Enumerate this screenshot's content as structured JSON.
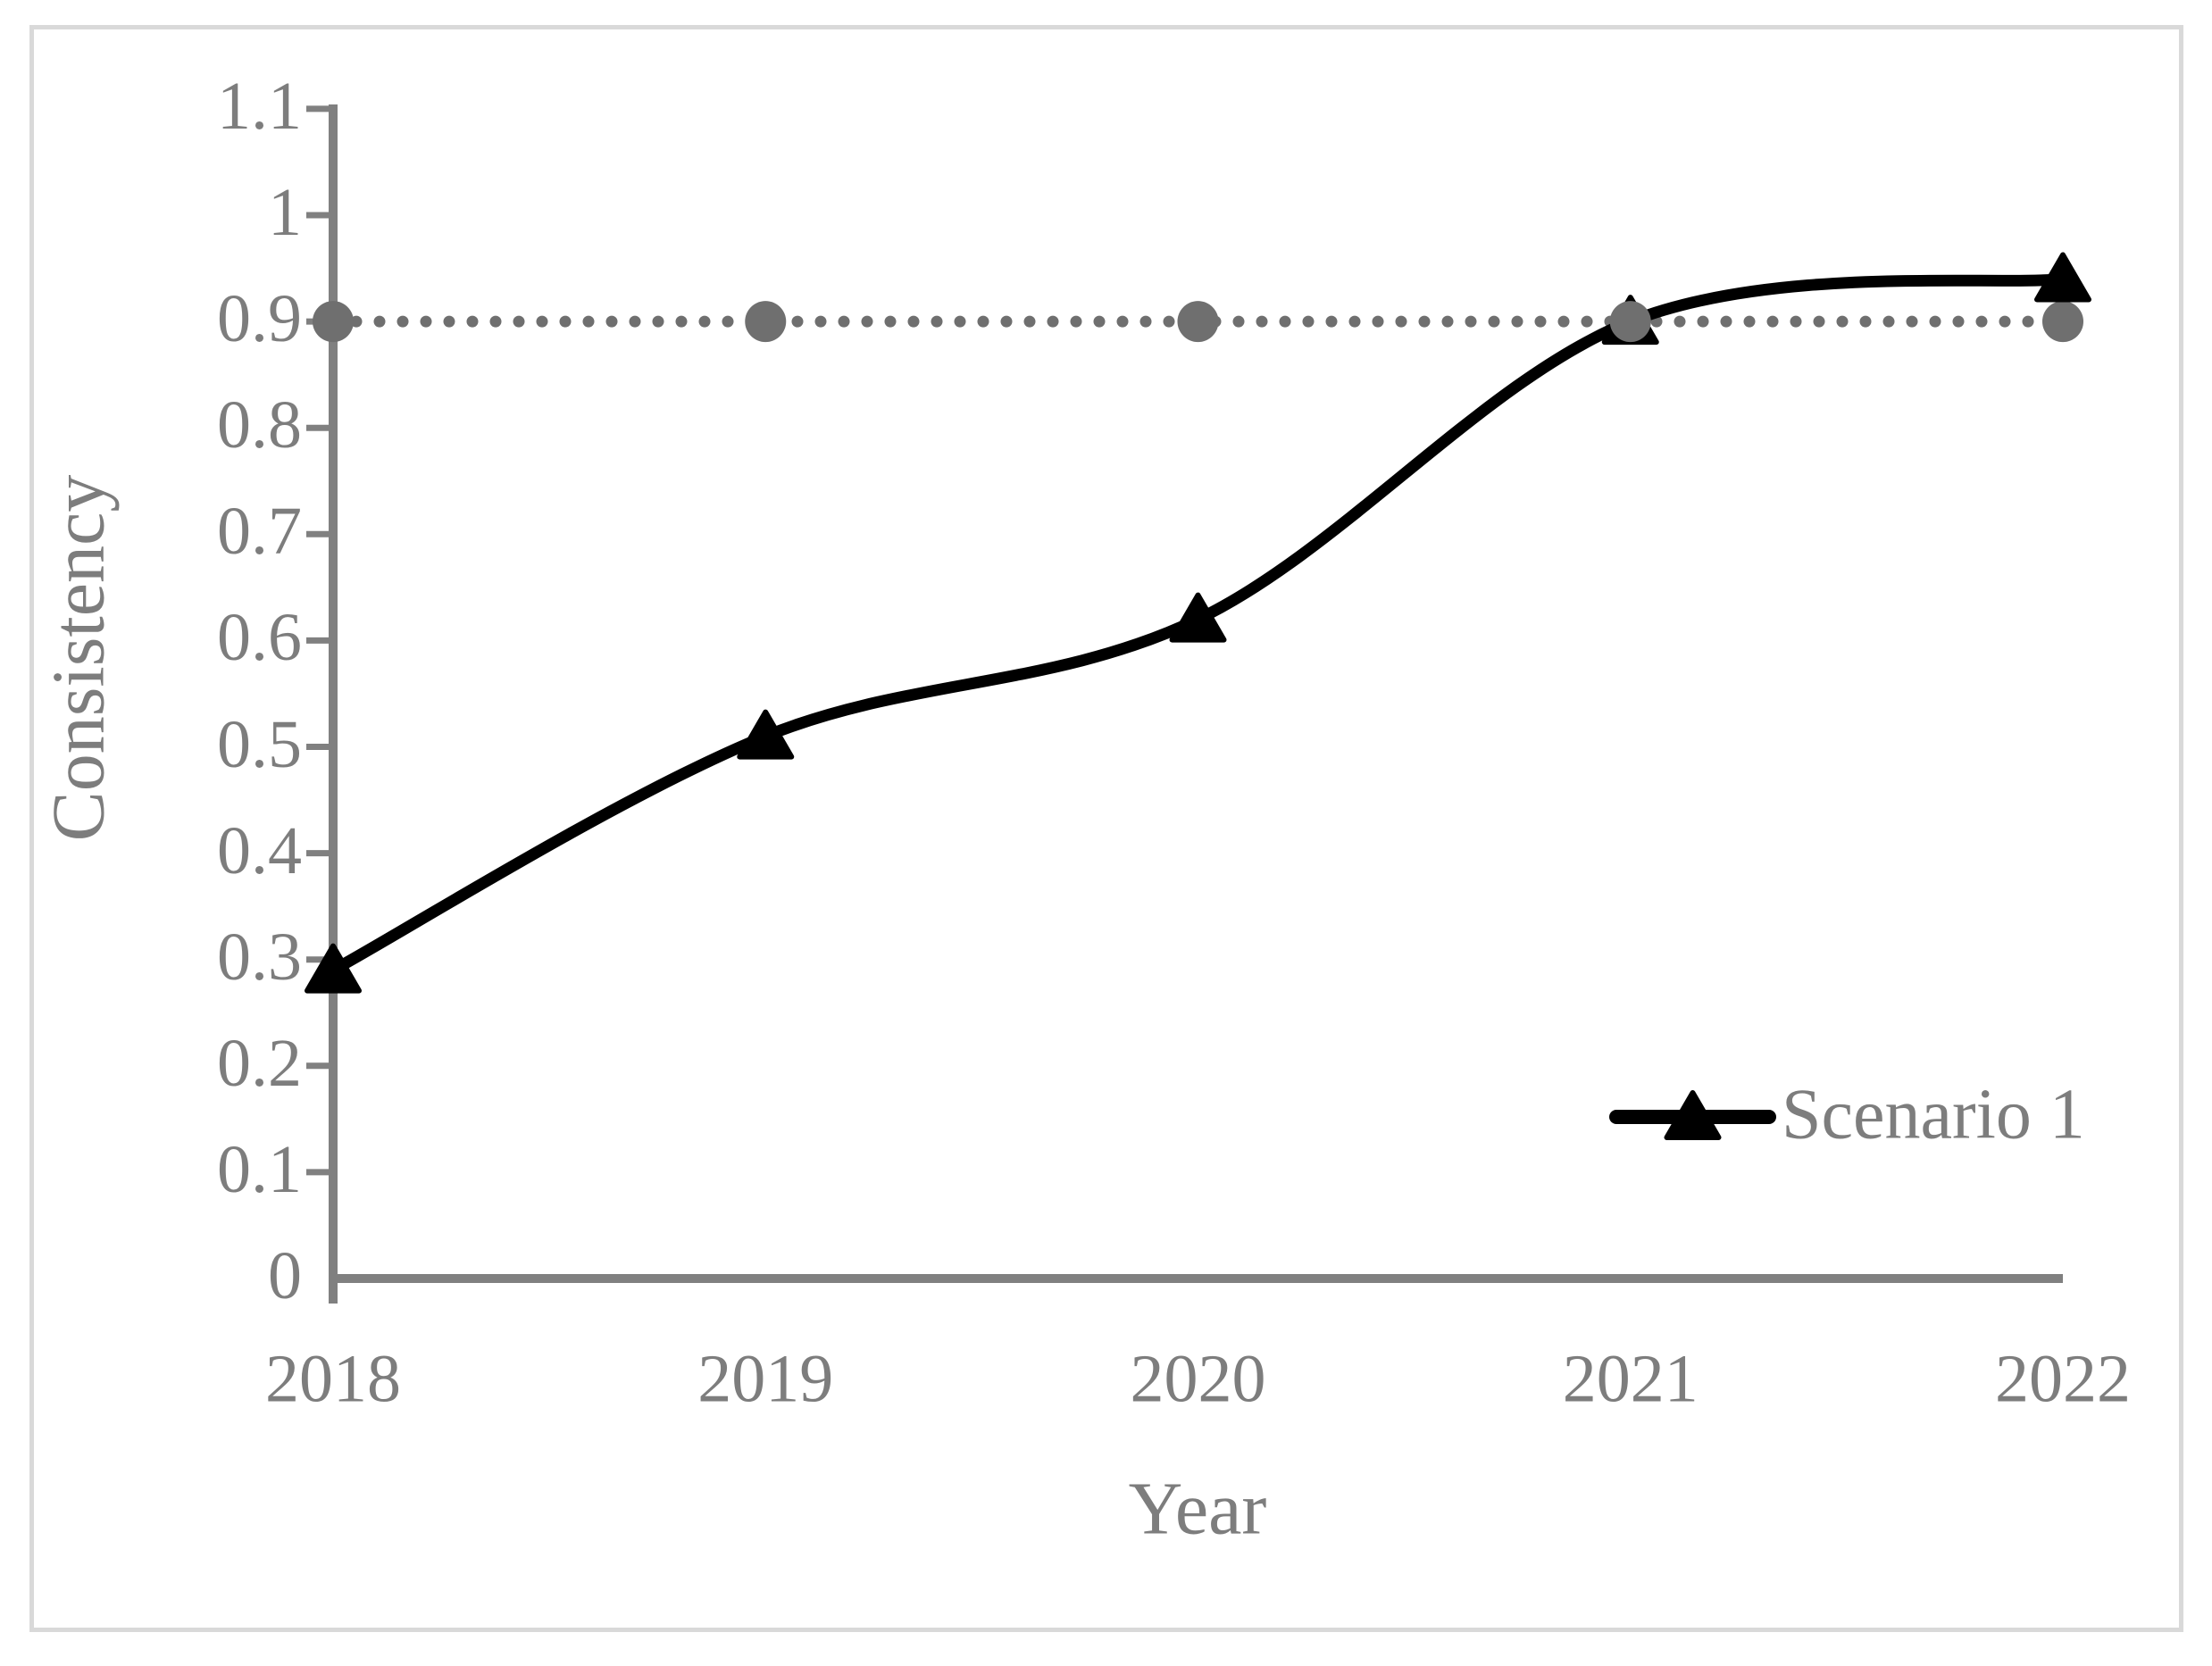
{
  "figure": {
    "background_color": "#ffffff",
    "border_color": "#d9d9d9"
  },
  "colors": {
    "series_black": "#000000",
    "reference_gray": "#6f6f6f",
    "axis_gray": "#808080",
    "text_gray": "#7d7d7d"
  },
  "chart_data": {
    "type": "line",
    "title": "",
    "xlabel": "Year",
    "ylabel": "Consistency",
    "x": [
      2018,
      2019,
      2020,
      2021,
      2022
    ],
    "x_tick_labels": [
      "2018",
      "2019",
      "2020",
      "2021",
      "2022"
    ],
    "ylim": [
      0,
      1.1
    ],
    "y_ticks": [
      0,
      0.1,
      0.2,
      0.3,
      0.4,
      0.5,
      0.6,
      0.7,
      0.8,
      0.9,
      1,
      1.1
    ],
    "y_tick_labels": [
      "0",
      "0.1",
      "0.2",
      "0.3",
      "0.4",
      "0.5",
      "0.6",
      "0.7",
      "0.8",
      "0.9",
      "1",
      "1.1"
    ],
    "grid": false,
    "series": [
      {
        "name": "Scenario 1",
        "values": [
          0.29,
          0.51,
          0.62,
          0.9,
          0.94
        ],
        "color": "#000000",
        "line_style": "solid-smooth",
        "marker": "triangle",
        "in_legend": true
      },
      {
        "name": "",
        "role": "reference-line-0.9",
        "values": [
          0.9,
          0.9,
          0.9,
          0.9,
          0.9
        ],
        "color": "#6f6f6f",
        "line_style": "dotted",
        "marker": "circle",
        "in_legend": false
      }
    ],
    "legend": {
      "position": "bottom-right",
      "entries": [
        {
          "label": "Scenario 1"
        }
      ]
    }
  }
}
